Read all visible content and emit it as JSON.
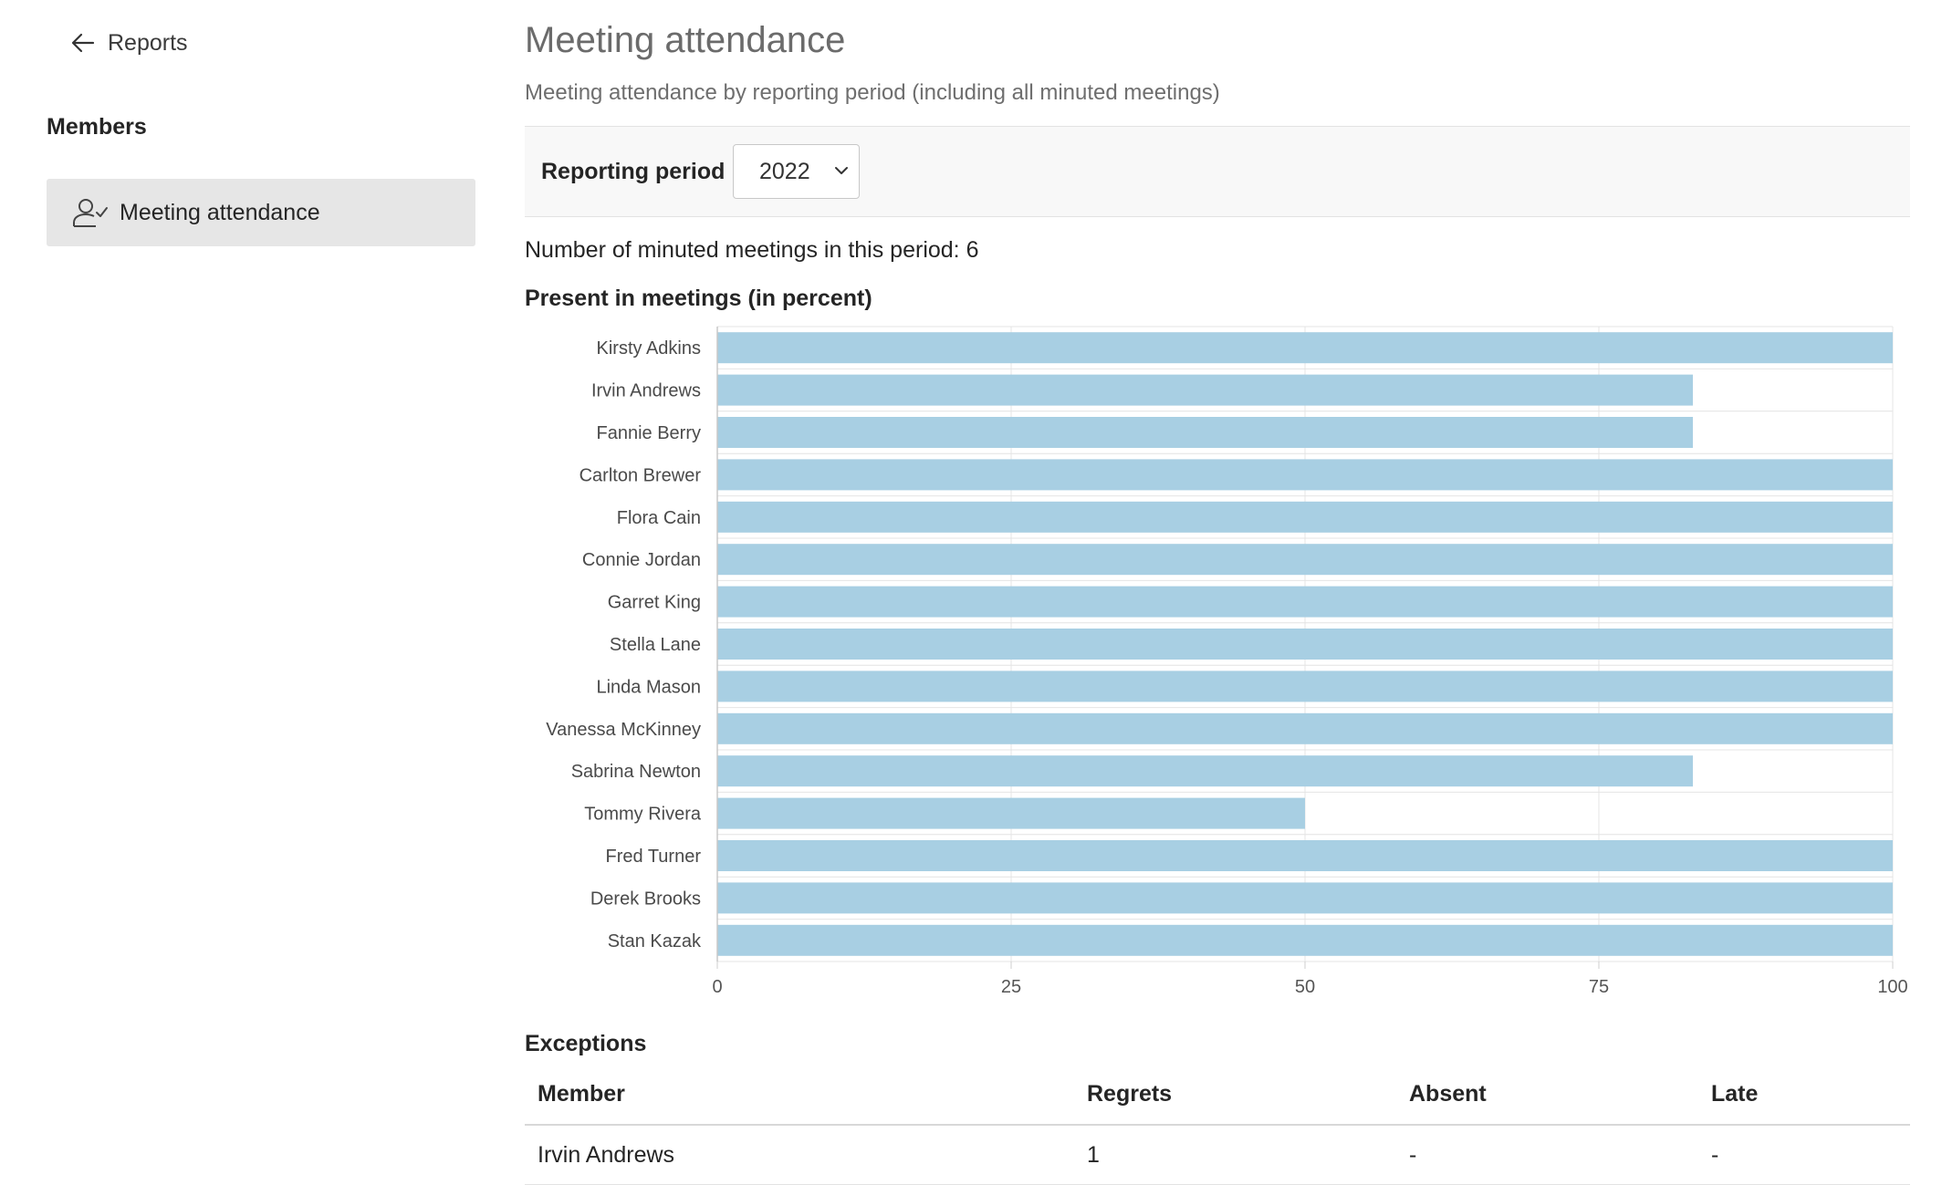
{
  "nav": {
    "back_label": "Reports",
    "section_heading": "Members",
    "items": [
      {
        "label": "Meeting attendance",
        "icon": "user-check-icon",
        "selected": true
      }
    ]
  },
  "page": {
    "title": "Meeting attendance",
    "subtitle": "Meeting attendance by reporting period (including all minuted meetings)"
  },
  "filter": {
    "label": "Reporting period",
    "selected_period": "2022"
  },
  "summary": {
    "meeting_count_text": "Number of minuted meetings in this period: 6"
  },
  "chart_title": "Present in meetings (in percent)",
  "chart_data": {
    "type": "bar",
    "orientation": "horizontal",
    "categories": [
      "Kirsty Adkins",
      "Irvin Andrews",
      "Fannie Berry",
      "Carlton Brewer",
      "Flora Cain",
      "Connie Jordan",
      "Garret King",
      "Stella Lane",
      "Linda Mason",
      "Vanessa McKinney",
      "Sabrina Newton",
      "Tommy Rivera",
      "Fred Turner",
      "Derek Brooks",
      "Stan Kazak"
    ],
    "values": [
      100,
      83,
      83,
      100,
      100,
      100,
      100,
      100,
      100,
      100,
      83,
      50,
      100,
      100,
      100
    ],
    "xlim": [
      0,
      100
    ],
    "xticks": [
      0,
      25,
      50,
      75,
      100
    ],
    "grid": true,
    "bar_color": "#a8cfe3"
  },
  "exceptions": {
    "title": "Exceptions",
    "columns": [
      "Member",
      "Regrets",
      "Absent",
      "Late"
    ],
    "rows": [
      [
        "Irvin Andrews",
        "1",
        "-",
        "-"
      ]
    ]
  }
}
